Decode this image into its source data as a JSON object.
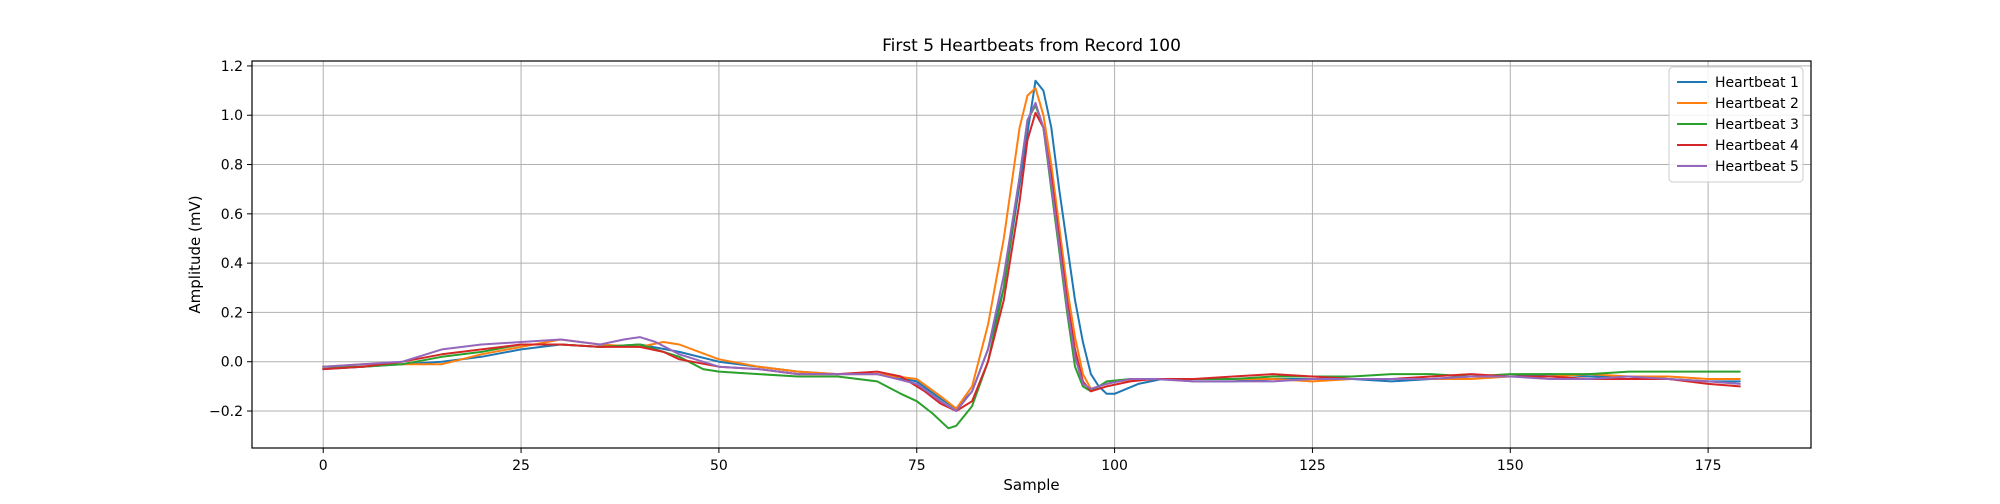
{
  "chart_data": {
    "type": "line",
    "title": "First 5 Heartbeats from Record 100",
    "xlabel": "Sample",
    "ylabel": "Amplitude (mV)",
    "xlim": [
      -9,
      188
    ],
    "ylim": [
      -0.35,
      1.22
    ],
    "xticks": [
      0,
      25,
      50,
      75,
      100,
      125,
      150,
      175
    ],
    "yticks": [
      -0.2,
      0.0,
      0.2,
      0.4,
      0.6,
      0.8,
      1.0,
      1.2
    ],
    "xtick_labels": [
      "0",
      "25",
      "50",
      "75",
      "100",
      "125",
      "150",
      "175"
    ],
    "ytick_labels": [
      "−0.2",
      "0.0",
      "0.2",
      "0.4",
      "0.6",
      "0.8",
      "1.0",
      "1.2"
    ],
    "grid": true,
    "legend_position": "top-right",
    "series": [
      {
        "name": "Heartbeat 1",
        "color": "#1f77b4",
        "points": [
          [
            0,
            -0.03
          ],
          [
            5,
            -0.02
          ],
          [
            10,
            -0.01
          ],
          [
            15,
            0.0
          ],
          [
            20,
            0.02
          ],
          [
            25,
            0.05
          ],
          [
            30,
            0.07
          ],
          [
            35,
            0.06
          ],
          [
            40,
            0.07
          ],
          [
            45,
            0.04
          ],
          [
            50,
            0.0
          ],
          [
            55,
            -0.02
          ],
          [
            60,
            -0.04
          ],
          [
            65,
            -0.05
          ],
          [
            70,
            -0.05
          ],
          [
            75,
            -0.08
          ],
          [
            78,
            -0.15
          ],
          [
            80,
            -0.19
          ],
          [
            82,
            -0.12
          ],
          [
            84,
            0.05
          ],
          [
            86,
            0.3
          ],
          [
            88,
            0.72
          ],
          [
            90,
            1.14
          ],
          [
            91,
            1.1
          ],
          [
            92,
            0.95
          ],
          [
            93,
            0.7
          ],
          [
            95,
            0.25
          ],
          [
            96,
            0.08
          ],
          [
            97,
            -0.05
          ],
          [
            98,
            -0.1
          ],
          [
            99,
            -0.13
          ],
          [
            100,
            -0.13
          ],
          [
            103,
            -0.09
          ],
          [
            106,
            -0.07
          ],
          [
            110,
            -0.08
          ],
          [
            115,
            -0.08
          ],
          [
            120,
            -0.07
          ],
          [
            125,
            -0.07
          ],
          [
            130,
            -0.07
          ],
          [
            135,
            -0.08
          ],
          [
            140,
            -0.07
          ],
          [
            145,
            -0.06
          ],
          [
            150,
            -0.06
          ],
          [
            155,
            -0.05
          ],
          [
            160,
            -0.06
          ],
          [
            165,
            -0.06
          ],
          [
            170,
            -0.07
          ],
          [
            175,
            -0.08
          ],
          [
            179,
            -0.08
          ]
        ]
      },
      {
        "name": "Heartbeat 2",
        "color": "#ff7f0e",
        "points": [
          [
            0,
            -0.02
          ],
          [
            5,
            -0.01
          ],
          [
            10,
            -0.01
          ],
          [
            15,
            -0.01
          ],
          [
            20,
            0.03
          ],
          [
            25,
            0.06
          ],
          [
            30,
            0.09
          ],
          [
            35,
            0.07
          ],
          [
            40,
            0.06
          ],
          [
            43,
            0.08
          ],
          [
            45,
            0.07
          ],
          [
            50,
            0.01
          ],
          [
            55,
            -0.02
          ],
          [
            60,
            -0.04
          ],
          [
            65,
            -0.05
          ],
          [
            70,
            -0.05
          ],
          [
            75,
            -0.07
          ],
          [
            78,
            -0.14
          ],
          [
            80,
            -0.19
          ],
          [
            82,
            -0.1
          ],
          [
            84,
            0.15
          ],
          [
            86,
            0.5
          ],
          [
            88,
            0.95
          ],
          [
            89,
            1.08
          ],
          [
            90,
            1.11
          ],
          [
            91,
            1.0
          ],
          [
            92,
            0.8
          ],
          [
            94,
            0.3
          ],
          [
            95,
            0.1
          ],
          [
            96,
            -0.05
          ],
          [
            97,
            -0.11
          ],
          [
            98,
            -0.1
          ],
          [
            100,
            -0.08
          ],
          [
            105,
            -0.07
          ],
          [
            110,
            -0.07
          ],
          [
            115,
            -0.07
          ],
          [
            120,
            -0.07
          ],
          [
            125,
            -0.08
          ],
          [
            130,
            -0.07
          ],
          [
            135,
            -0.07
          ],
          [
            140,
            -0.07
          ],
          [
            145,
            -0.07
          ],
          [
            150,
            -0.06
          ],
          [
            155,
            -0.06
          ],
          [
            160,
            -0.05
          ],
          [
            165,
            -0.06
          ],
          [
            170,
            -0.06
          ],
          [
            175,
            -0.07
          ],
          [
            179,
            -0.07
          ]
        ]
      },
      {
        "name": "Heartbeat 3",
        "color": "#2ca02c",
        "points": [
          [
            0,
            -0.02
          ],
          [
            5,
            -0.02
          ],
          [
            10,
            -0.01
          ],
          [
            15,
            0.02
          ],
          [
            20,
            0.04
          ],
          [
            25,
            0.07
          ],
          [
            30,
            0.07
          ],
          [
            35,
            0.06
          ],
          [
            40,
            0.07
          ],
          [
            45,
            0.02
          ],
          [
            48,
            -0.03
          ],
          [
            50,
            -0.04
          ],
          [
            55,
            -0.05
          ],
          [
            60,
            -0.06
          ],
          [
            65,
            -0.06
          ],
          [
            70,
            -0.08
          ],
          [
            73,
            -0.13
          ],
          [
            75,
            -0.16
          ],
          [
            77,
            -0.21
          ],
          [
            79,
            -0.27
          ],
          [
            80,
            -0.26
          ],
          [
            82,
            -0.18
          ],
          [
            84,
            0.0
          ],
          [
            86,
            0.3
          ],
          [
            88,
            0.75
          ],
          [
            89,
            0.98
          ],
          [
            90,
            1.04
          ],
          [
            91,
            0.95
          ],
          [
            92,
            0.7
          ],
          [
            94,
            0.2
          ],
          [
            95,
            -0.02
          ],
          [
            96,
            -0.1
          ],
          [
            97,
            -0.12
          ],
          [
            99,
            -0.08
          ],
          [
            102,
            -0.07
          ],
          [
            105,
            -0.07
          ],
          [
            110,
            -0.07
          ],
          [
            115,
            -0.07
          ],
          [
            120,
            -0.06
          ],
          [
            125,
            -0.06
          ],
          [
            130,
            -0.06
          ],
          [
            135,
            -0.05
          ],
          [
            140,
            -0.05
          ],
          [
            145,
            -0.06
          ],
          [
            150,
            -0.05
          ],
          [
            155,
            -0.05
          ],
          [
            160,
            -0.05
          ],
          [
            165,
            -0.04
          ],
          [
            170,
            -0.04
          ],
          [
            175,
            -0.04
          ],
          [
            179,
            -0.04
          ]
        ]
      },
      {
        "name": "Heartbeat 4",
        "color": "#d62728",
        "points": [
          [
            0,
            -0.03
          ],
          [
            5,
            -0.02
          ],
          [
            10,
            0.0
          ],
          [
            15,
            0.03
          ],
          [
            20,
            0.05
          ],
          [
            25,
            0.07
          ],
          [
            30,
            0.07
          ],
          [
            35,
            0.06
          ],
          [
            40,
            0.06
          ],
          [
            43,
            0.04
          ],
          [
            45,
            0.01
          ],
          [
            50,
            -0.02
          ],
          [
            55,
            -0.03
          ],
          [
            60,
            -0.05
          ],
          [
            65,
            -0.05
          ],
          [
            70,
            -0.04
          ],
          [
            73,
            -0.06
          ],
          [
            76,
            -0.12
          ],
          [
            78,
            -0.17
          ],
          [
            80,
            -0.2
          ],
          [
            82,
            -0.16
          ],
          [
            84,
            0.0
          ],
          [
            86,
            0.25
          ],
          [
            88,
            0.65
          ],
          [
            89,
            0.9
          ],
          [
            90,
            1.01
          ],
          [
            91,
            0.95
          ],
          [
            92,
            0.75
          ],
          [
            94,
            0.25
          ],
          [
            95,
            0.05
          ],
          [
            96,
            -0.08
          ],
          [
            97,
            -0.12
          ],
          [
            99,
            -0.1
          ],
          [
            102,
            -0.08
          ],
          [
            105,
            -0.07
          ],
          [
            110,
            -0.07
          ],
          [
            115,
            -0.06
          ],
          [
            120,
            -0.05
          ],
          [
            125,
            -0.06
          ],
          [
            130,
            -0.07
          ],
          [
            135,
            -0.07
          ],
          [
            140,
            -0.06
          ],
          [
            145,
            -0.05
          ],
          [
            150,
            -0.06
          ],
          [
            155,
            -0.06
          ],
          [
            160,
            -0.07
          ],
          [
            165,
            -0.07
          ],
          [
            170,
            -0.07
          ],
          [
            175,
            -0.09
          ],
          [
            179,
            -0.1
          ]
        ]
      },
      {
        "name": "Heartbeat 5",
        "color": "#9467bd",
        "points": [
          [
            0,
            -0.02
          ],
          [
            5,
            -0.01
          ],
          [
            10,
            0.0
          ],
          [
            15,
            0.05
          ],
          [
            20,
            0.07
          ],
          [
            25,
            0.08
          ],
          [
            30,
            0.09
          ],
          [
            35,
            0.07
          ],
          [
            38,
            0.09
          ],
          [
            40,
            0.1
          ],
          [
            42,
            0.08
          ],
          [
            45,
            0.03
          ],
          [
            50,
            -0.02
          ],
          [
            55,
            -0.03
          ],
          [
            60,
            -0.05
          ],
          [
            65,
            -0.05
          ],
          [
            70,
            -0.05
          ],
          [
            75,
            -0.09
          ],
          [
            78,
            -0.16
          ],
          [
            80,
            -0.2
          ],
          [
            82,
            -0.12
          ],
          [
            84,
            0.05
          ],
          [
            86,
            0.35
          ],
          [
            88,
            0.75
          ],
          [
            89,
            0.98
          ],
          [
            90,
            1.05
          ],
          [
            91,
            0.95
          ],
          [
            92,
            0.72
          ],
          [
            94,
            0.22
          ],
          [
            95,
            0.02
          ],
          [
            96,
            -0.09
          ],
          [
            97,
            -0.11
          ],
          [
            99,
            -0.09
          ],
          [
            102,
            -0.07
          ],
          [
            105,
            -0.07
          ],
          [
            110,
            -0.08
          ],
          [
            115,
            -0.08
          ],
          [
            120,
            -0.08
          ],
          [
            125,
            -0.07
          ],
          [
            130,
            -0.07
          ],
          [
            135,
            -0.07
          ],
          [
            140,
            -0.07
          ],
          [
            145,
            -0.06
          ],
          [
            150,
            -0.06
          ],
          [
            155,
            -0.07
          ],
          [
            160,
            -0.07
          ],
          [
            165,
            -0.06
          ],
          [
            170,
            -0.07
          ],
          [
            175,
            -0.08
          ],
          [
            179,
            -0.09
          ]
        ]
      }
    ]
  }
}
